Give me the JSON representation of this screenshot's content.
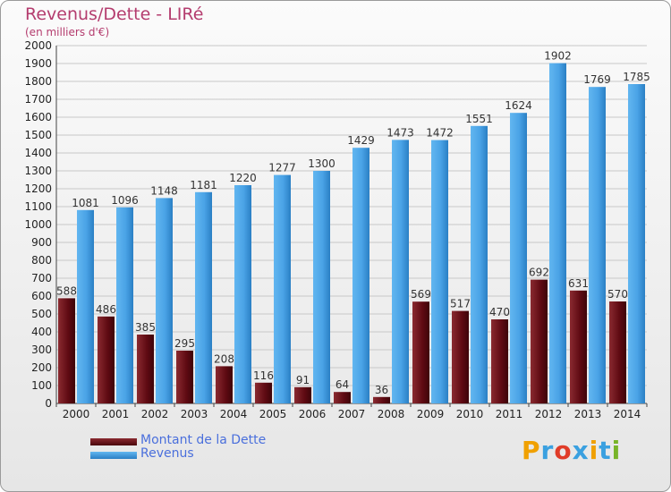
{
  "title": "Revenus/Dette - LIRé",
  "subtitle": "(en milliers d'€)",
  "logo": {
    "text": "Proxiti",
    "letters": [
      {
        "ch": "P",
        "color": "#f0a000"
      },
      {
        "ch": "r",
        "color": "#3aa0e0"
      },
      {
        "ch": "o",
        "color": "#e03c28"
      },
      {
        "ch": "x",
        "color": "#3aa0e0"
      },
      {
        "ch": "i",
        "color": "#f0a000"
      },
      {
        "ch": "t",
        "color": "#3aa0e0"
      },
      {
        "ch": "i",
        "color": "#78b428"
      }
    ]
  },
  "chart_data": {
    "type": "bar",
    "title": "Revenus/Dette - LIRé",
    "subtitle": "(en milliers d'€)",
    "categories": [
      "2000",
      "2001",
      "2002",
      "2003",
      "2004",
      "2005",
      "2006",
      "2007",
      "2008",
      "2009",
      "2010",
      "2011",
      "2012",
      "2013",
      "2014"
    ],
    "series": [
      {
        "name": "Montant de la Dette",
        "color": "#6e0f17",
        "values": [
          588,
          486,
          385,
          295,
          208,
          116,
          91,
          64,
          36,
          569,
          517,
          470,
          692,
          631,
          570
        ]
      },
      {
        "name": "Revenus",
        "color": "#4aa3e6",
        "values": [
          1081,
          1096,
          1148,
          1181,
          1220,
          1277,
          1300,
          1429,
          1473,
          1472,
          1551,
          1624,
          1902,
          1769,
          1785
        ]
      }
    ],
    "ylim": [
      0,
      2000
    ],
    "ytick_step": 100,
    "grid": true,
    "legend_position": "bottom-left"
  }
}
